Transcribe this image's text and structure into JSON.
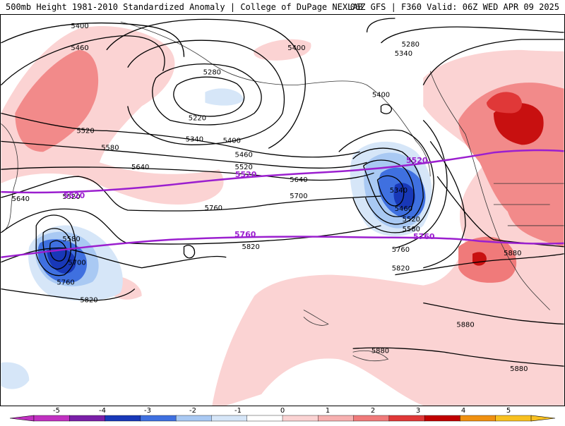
{
  "header": {
    "title_left": "500mb Height 1981-2010 Standardized Anomaly | College of DuPage NEXLAB",
    "title_right": "06Z GFS | F360 Valid: 06Z WED APR 09 2025"
  },
  "contour_labels": [
    "5400",
    "5460",
    "5520",
    "5580",
    "5640",
    "5640",
    "5520",
    "5580",
    "5700",
    "5760",
    "5820",
    "5280",
    "5220",
    "5340",
    "5400",
    "5460",
    "5520",
    "5400",
    "5760",
    "5640",
    "5700",
    "5820",
    "5340",
    "5400",
    "5280",
    "5340",
    "5460",
    "5520",
    "5580",
    "5760",
    "5820",
    "5880",
    "5880",
    "5880",
    "5880"
  ],
  "reference_labels": [
    "5520",
    "5520",
    "5520",
    "5760",
    "5760"
  ],
  "colorbar": {
    "ticks": [
      "-5",
      "-4",
      "-3",
      "-2",
      "-1",
      "0",
      "1",
      "2",
      "3",
      "4",
      "5"
    ],
    "colors": {
      "neg5": "#c030c0",
      "neg4": "#7a1fa8",
      "neg3": "#1838b8",
      "neg2": "#3f70e0",
      "neg1": "#a9c9f3",
      "neg05": "#d6e6f8",
      "zero": "#ffffff",
      "pos05": "#fbd3d3",
      "pos1": "#f7b0b0",
      "pos2": "#f07a7a",
      "pos3": "#e03838",
      "pos4": "#c00000",
      "pos5": "#f09010",
      "pos6": "#f8c020"
    }
  }
}
